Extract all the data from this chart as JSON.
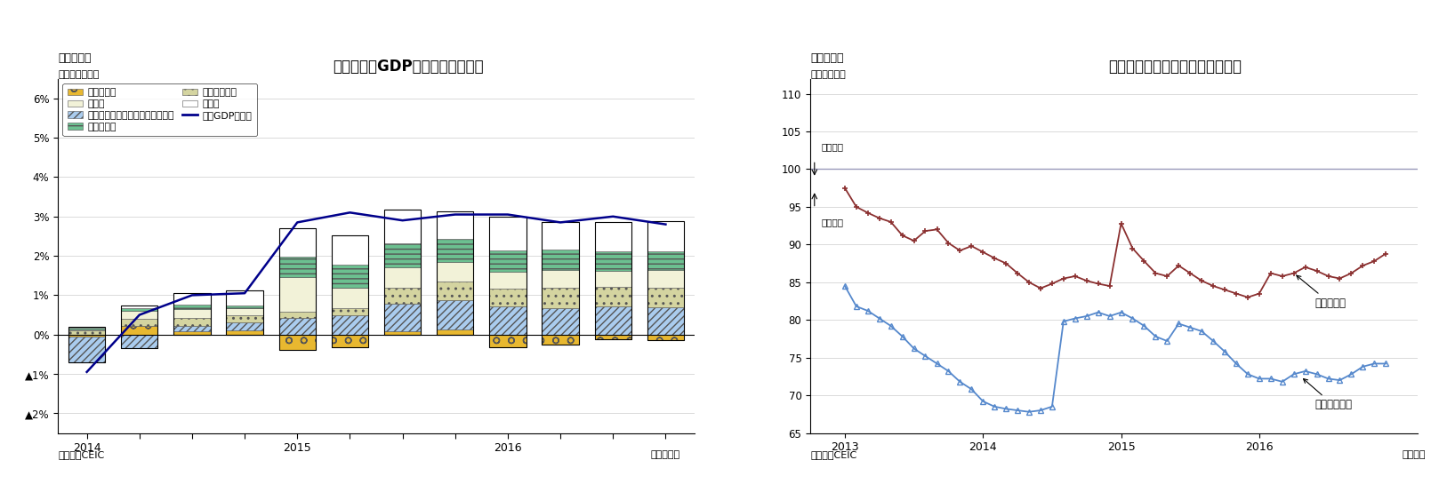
{
  "chart1": {
    "title": "タイ　実質GDP成長率（供給側）",
    "ylabel": "（前年同期比）",
    "xlabel": "（四半期）",
    "source": "（資料）CEIC",
    "figure_label": "（図表３）",
    "ylim": [
      -2.5,
      6.5
    ],
    "yticks": [
      -2,
      -1,
      0,
      1,
      2,
      3,
      4,
      5,
      6
    ],
    "ytick_labels": [
      "▲2%",
      "▲1%",
      "0%",
      "1%",
      "2%",
      "3%",
      "4%",
      "5%",
      "6%"
    ],
    "agri": [
      -0.05,
      0.22,
      0.08,
      0.1,
      -0.38,
      -0.32,
      0.08,
      0.12,
      -0.32,
      -0.25,
      -0.12,
      -0.15
    ],
    "retail": [
      -0.65,
      -0.35,
      0.15,
      0.2,
      0.42,
      0.5,
      0.7,
      0.75,
      0.72,
      0.68,
      0.72,
      0.7
    ],
    "finance": [
      0.1,
      0.18,
      0.2,
      0.18,
      0.15,
      0.18,
      0.42,
      0.48,
      0.45,
      0.5,
      0.5,
      0.48
    ],
    "manufacturing": [
      0.02,
      0.2,
      0.22,
      0.18,
      0.88,
      0.52,
      0.5,
      0.5,
      0.42,
      0.45,
      0.4,
      0.45
    ],
    "transport": [
      0.05,
      0.08,
      0.1,
      0.08,
      0.52,
      0.58,
      0.62,
      0.58,
      0.55,
      0.52,
      0.5,
      0.48
    ],
    "others": [
      0.03,
      0.05,
      0.3,
      0.38,
      0.72,
      0.75,
      0.85,
      0.7,
      0.85,
      0.7,
      0.75,
      0.78
    ],
    "gdp_line": [
      -0.95,
      0.5,
      1.0,
      1.05,
      2.85,
      3.1,
      2.9,
      3.05,
      3.05,
      2.85,
      3.0,
      2.8
    ],
    "agri_color": "#e8b830",
    "retail_color": "#aaccee",
    "finance_color": "#d4d4a0",
    "manufacturing_color": "#f2f2d8",
    "transport_color": "#6cc090",
    "others_color": "#ffffff",
    "gdp_color": "#00008B",
    "legend_left": [
      "農林水産業",
      "卸売・小売、ホテル・レストラン",
      "金融・不動産",
      "実質GDP成長率"
    ],
    "legend_right": [
      "製造業",
      "連輸・通信",
      "その他"
    ]
  },
  "chart2": {
    "title": "タイの企業景況感と消費者信頼感",
    "ylabel": "（ポイント）",
    "xlabel": "（月次）",
    "source": "（資料）CEIC",
    "figure_label": "（図表４）",
    "ylim": [
      65,
      112
    ],
    "yticks": [
      65,
      70,
      75,
      80,
      85,
      90,
      95,
      100,
      105,
      110
    ],
    "label_optimistic": "（楽観）",
    "label_pessimistic": "（悲観）",
    "biz_label": "企業景況感",
    "consumer_label": "消費者信頼感",
    "biz_color": "#8B3030",
    "consumer_color": "#5588cc",
    "ref_line_color": "#9999cc",
    "biz_x": [
      2013.0,
      2013.083,
      2013.167,
      2013.25,
      2013.333,
      2013.417,
      2013.5,
      2013.583,
      2013.667,
      2013.75,
      2013.833,
      2013.917,
      2014.0,
      2014.083,
      2014.167,
      2014.25,
      2014.333,
      2014.417,
      2014.5,
      2014.583,
      2014.667,
      2014.75,
      2014.833,
      2014.917,
      2015.0,
      2015.083,
      2015.167,
      2015.25,
      2015.333,
      2015.417,
      2015.5,
      2015.583,
      2015.667,
      2015.75,
      2015.833,
      2015.917,
      2016.0,
      2016.083,
      2016.167,
      2016.25,
      2016.333,
      2016.417,
      2016.5,
      2016.583,
      2016.667,
      2016.75,
      2016.833,
      2016.917
    ],
    "biz_y": [
      97.5,
      95.0,
      94.2,
      93.5,
      93.0,
      91.2,
      90.5,
      91.8,
      92.0,
      90.2,
      89.2,
      89.8,
      89.0,
      88.2,
      87.5,
      86.2,
      85.0,
      84.2,
      84.8,
      85.5,
      85.8,
      85.2,
      84.8,
      84.5,
      92.8,
      89.5,
      87.8,
      86.2,
      85.8,
      87.2,
      86.2,
      85.2,
      84.5,
      84.0,
      83.5,
      83.0,
      83.5,
      86.2,
      85.8,
      86.2,
      87.0,
      86.5,
      85.8,
      85.5,
      86.2,
      87.2,
      87.8,
      88.8
    ],
    "consumer_x": [
      2013.0,
      2013.083,
      2013.167,
      2013.25,
      2013.333,
      2013.417,
      2013.5,
      2013.583,
      2013.667,
      2013.75,
      2013.833,
      2013.917,
      2014.0,
      2014.083,
      2014.167,
      2014.25,
      2014.333,
      2014.417,
      2014.5,
      2014.583,
      2014.667,
      2014.75,
      2014.833,
      2014.917,
      2015.0,
      2015.083,
      2015.167,
      2015.25,
      2015.333,
      2015.417,
      2015.5,
      2015.583,
      2015.667,
      2015.75,
      2015.833,
      2015.917,
      2016.0,
      2016.083,
      2016.167,
      2016.25,
      2016.333,
      2016.417,
      2016.5,
      2016.583,
      2016.667,
      2016.75,
      2016.833,
      2016.917
    ],
    "consumer_y": [
      84.5,
      81.8,
      81.2,
      80.2,
      79.2,
      77.8,
      76.2,
      75.2,
      74.2,
      73.2,
      71.8,
      70.8,
      69.2,
      68.5,
      68.2,
      68.0,
      67.8,
      68.0,
      68.5,
      79.8,
      80.2,
      80.5,
      81.0,
      80.5,
      81.0,
      80.2,
      79.2,
      77.8,
      77.2,
      79.5,
      79.0,
      78.5,
      77.2,
      75.8,
      74.2,
      72.8,
      72.2,
      72.2,
      71.8,
      72.8,
      73.2,
      72.8,
      72.2,
      72.0,
      72.8,
      73.8,
      74.2,
      74.2
    ]
  }
}
